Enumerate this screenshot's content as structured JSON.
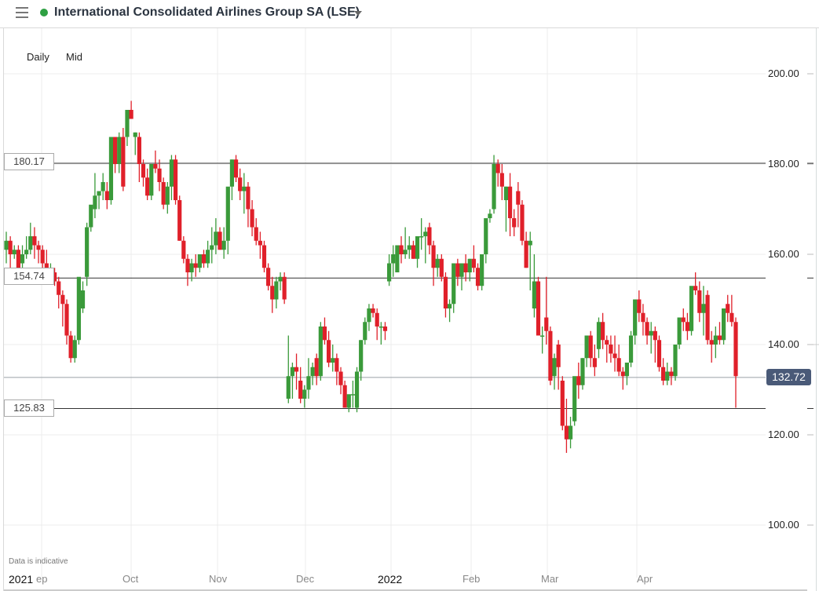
{
  "header": {
    "title": "International Consolidated Airlines Group SA (LSE)",
    "status_color": "#2ea043",
    "menu_icon": "hamburger-icon",
    "dropdown_icon": "caret-down-icon"
  },
  "controls": {
    "interval": "Daily",
    "price_type": "Mid"
  },
  "disclaimer": "Data is indicative",
  "colors": {
    "up": "#3a9a3a",
    "down": "#e0202a",
    "gridline": "#ececec",
    "level_line": "#333333",
    "last_price_bg": "#4a5a78"
  },
  "levels": [
    {
      "value": 180.17,
      "label": "180.17"
    },
    {
      "value": 154.74,
      "label": "154.74"
    },
    {
      "value": 125.83,
      "label": "125.83"
    }
  ],
  "last_price": {
    "value": 132.72,
    "label": "132.72"
  },
  "y_axis": {
    "ticks": [
      "200.00",
      "180.00",
      "160.00",
      "140.00",
      "120.00",
      "100.00"
    ]
  },
  "x_axis": {
    "ticks": [
      {
        "label": "2021",
        "year": true
      },
      {
        "label": "ep",
        "year": false
      },
      {
        "label": "Oct",
        "year": false
      },
      {
        "label": "Nov",
        "year": false
      },
      {
        "label": "Dec",
        "year": false
      },
      {
        "label": "2022",
        "year": true
      },
      {
        "label": "Feb",
        "year": false
      },
      {
        "label": "Mar",
        "year": false
      },
      {
        "label": "Apr",
        "year": false
      }
    ]
  },
  "chart_data": {
    "type": "candlestick",
    "title": "International Consolidated Airlines Group SA (LSE)",
    "subtitle": "Daily Mid",
    "xlabel": "",
    "ylabel": "",
    "ylim": [
      96,
      207
    ],
    "x_range": [
      "2021-09",
      "2022-04"
    ],
    "grid": true,
    "horizontal_levels": [
      180.17,
      154.74,
      125.83
    ],
    "last_price": 132.72,
    "y_ticks": [
      100,
      120,
      140,
      160,
      180,
      200
    ],
    "x_ticks": [
      "2021 Sep",
      "Oct",
      "Nov",
      "Dec",
      "2022",
      "Feb",
      "Mar",
      "Apr"
    ],
    "candles": [
      [
        161,
        165,
        158,
        163
      ],
      [
        163,
        164,
        157,
        160
      ],
      [
        160,
        162,
        159,
        161
      ],
      [
        161,
        162,
        155,
        157
      ],
      [
        158,
        162,
        157,
        160
      ],
      [
        160,
        164,
        159,
        161
      ],
      [
        161,
        167,
        160,
        164
      ],
      [
        164,
        166,
        159,
        162
      ],
      [
        162,
        163,
        158,
        161
      ],
      [
        161,
        162,
        156,
        158
      ],
      [
        158,
        161,
        155,
        155
      ],
      [
        155,
        158,
        154,
        156
      ],
      [
        156,
        157,
        153,
        154
      ],
      [
        154,
        155,
        148,
        151
      ],
      [
        151,
        152,
        144,
        149
      ],
      [
        149,
        150,
        140,
        142
      ],
      [
        142,
        143,
        136,
        137
      ],
      [
        137,
        142,
        136,
        141
      ],
      [
        141,
        153,
        140,
        155
      ],
      [
        148,
        154,
        147,
        152
      ],
      [
        155,
        167,
        153,
        166
      ],
      [
        166,
        170,
        165,
        171
      ],
      [
        170,
        178,
        168,
        173
      ],
      [
        173,
        174,
        170,
        174
      ],
      [
        174,
        178,
        172,
        176
      ],
      [
        174,
        176,
        170,
        172
      ],
      [
        172,
        186,
        171,
        186
      ],
      [
        186,
        186,
        178,
        180
      ],
      [
        180,
        187,
        178,
        186
      ],
      [
        186,
        188,
        174,
        175
      ],
      [
        186,
        191,
        184,
        192
      ],
      [
        192,
        194,
        190,
        190
      ],
      [
        186,
        187,
        182,
        187
      ],
      [
        186,
        187,
        176,
        180
      ],
      [
        180,
        181,
        175,
        177
      ],
      [
        177,
        179,
        172,
        173
      ],
      [
        173,
        180,
        172,
        180
      ],
      [
        180,
        183,
        178,
        179
      ],
      [
        179,
        181,
        174,
        176
      ],
      [
        176,
        177,
        170,
        171
      ],
      [
        171,
        176,
        169,
        175
      ],
      [
        175,
        182,
        172,
        181
      ],
      [
        181,
        182,
        171,
        172
      ],
      [
        172,
        173,
        163,
        163
      ],
      [
        163,
        164,
        158,
        159
      ],
      [
        159,
        160,
        153,
        156
      ],
      [
        156,
        159,
        154,
        158
      ],
      [
        158,
        160,
        155,
        157
      ],
      [
        157,
        160,
        156,
        160
      ],
      [
        160,
        161,
        157,
        158
      ],
      [
        158,
        163,
        157,
        161
      ],
      [
        161,
        166,
        158,
        162
      ],
      [
        162,
        168,
        160,
        165
      ],
      [
        165,
        166,
        161,
        161
      ],
      [
        161,
        166,
        159,
        163
      ],
      [
        163,
        172,
        160,
        175
      ],
      [
        175,
        181,
        172,
        181
      ],
      [
        181,
        182,
        176,
        177
      ],
      [
        177,
        179,
        172,
        174
      ],
      [
        174,
        178,
        169,
        175
      ],
      [
        175,
        176,
        166,
        170
      ],
      [
        170,
        172,
        164,
        166
      ],
      [
        166,
        168,
        162,
        163
      ],
      [
        163,
        165,
        159,
        162
      ],
      [
        162,
        163,
        156,
        157
      ],
      [
        157,
        158,
        152,
        153
      ],
      [
        153,
        155,
        147,
        150
      ],
      [
        150,
        155,
        148,
        154
      ],
      [
        154,
        156,
        152,
        155
      ],
      [
        155,
        156,
        149,
        150
      ],
      [
        128,
        142,
        127,
        133
      ],
      [
        133,
        136,
        128,
        135
      ],
      [
        135,
        138,
        130,
        134
      ],
      [
        132,
        135,
        127,
        128
      ],
      [
        128,
        131,
        126,
        130
      ],
      [
        130,
        137,
        128,
        133
      ],
      [
        133,
        136,
        131,
        135
      ],
      [
        137,
        138,
        131,
        133
      ],
      [
        133,
        145,
        132,
        144
      ],
      [
        144,
        146,
        140,
        141
      ],
      [
        141,
        143,
        135,
        136
      ],
      [
        136,
        140,
        134,
        137
      ],
      [
        137,
        138,
        131,
        134
      ],
      [
        134,
        135,
        129,
        131
      ],
      [
        131,
        132,
        126,
        126
      ],
      [
        126,
        128,
        125,
        129
      ],
      [
        129,
        132,
        126,
        129
      ],
      [
        126,
        135,
        125,
        134
      ],
      [
        134,
        141,
        132,
        141
      ],
      [
        141,
        146,
        140,
        145
      ],
      [
        145,
        149,
        143,
        148
      ],
      [
        148,
        149,
        146,
        147
      ],
      [
        147,
        148,
        141,
        144
      ],
      [
        144,
        145,
        140,
        144
      ],
      [
        144,
        145,
        141,
        143
      ],
      [
        154,
        160,
        153,
        158
      ],
      [
        158,
        162,
        155,
        160
      ],
      [
        156,
        162,
        156,
        162
      ],
      [
        162,
        164,
        158,
        160
      ],
      [
        160,
        166,
        159,
        161
      ],
      [
        161,
        164,
        159,
        162
      ],
      [
        162,
        163,
        159,
        159
      ],
      [
        159,
        164,
        157,
        164
      ],
      [
        164,
        168,
        161,
        164
      ],
      [
        164,
        166,
        158,
        165
      ],
      [
        166,
        167,
        160,
        162
      ],
      [
        162,
        163,
        153,
        157
      ],
      [
        157,
        160,
        155,
        159
      ],
      [
        159,
        160,
        154,
        155
      ],
      [
        155,
        156,
        146,
        148
      ],
      [
        148,
        150,
        145,
        149
      ],
      [
        149,
        158,
        147,
        158
      ],
      [
        158,
        159,
        153,
        155
      ],
      [
        155,
        157,
        152,
        158
      ],
      [
        158,
        160,
        154,
        156
      ],
      [
        156,
        159,
        154,
        159
      ],
      [
        159,
        162,
        156,
        157
      ],
      [
        157,
        158,
        152,
        153
      ],
      [
        153,
        158,
        152,
        160
      ],
      [
        160,
        165,
        158,
        168
      ],
      [
        168,
        170,
        167,
        169
      ],
      [
        170,
        182,
        169,
        180
      ],
      [
        180,
        181,
        175,
        178
      ],
      [
        178,
        180,
        172,
        175
      ],
      [
        172,
        175,
        165,
        175
      ],
      [
        175,
        178,
        164,
        168
      ],
      [
        168,
        170,
        164,
        166
      ],
      [
        174,
        176,
        166,
        171
      ],
      [
        171,
        172,
        162,
        163
      ],
      [
        163,
        165,
        157,
        157
      ],
      [
        162,
        165,
        152,
        163
      ],
      [
        148,
        160,
        146,
        154
      ],
      [
        154,
        155,
        143,
        142
      ],
      [
        142,
        144,
        138,
        142
      ],
      [
        146,
        155,
        140,
        143
      ],
      [
        143,
        144,
        131,
        132
      ],
      [
        133,
        138,
        130,
        137
      ],
      [
        140,
        141,
        130,
        135
      ],
      [
        132,
        133,
        121,
        122
      ],
      [
        122,
        128,
        116,
        119
      ],
      [
        119,
        124,
        117,
        122
      ],
      [
        123,
        130,
        122,
        133
      ],
      [
        133,
        136,
        128,
        131
      ],
      [
        131,
        137,
        130,
        137
      ],
      [
        137,
        142,
        135,
        142
      ],
      [
        142,
        143,
        135,
        137
      ],
      [
        137,
        140,
        133,
        135
      ],
      [
        139,
        146,
        137,
        145
      ],
      [
        145,
        147,
        139,
        141
      ],
      [
        141,
        142,
        136,
        140
      ],
      [
        140,
        142,
        136,
        138
      ],
      [
        138,
        142,
        134,
        137
      ],
      [
        137,
        140,
        133,
        134
      ],
      [
        134,
        135,
        130,
        133
      ],
      [
        133,
        136,
        131,
        136
      ],
      [
        136,
        143,
        135,
        142
      ],
      [
        142,
        149,
        140,
        150
      ],
      [
        150,
        152,
        145,
        147
      ],
      [
        147,
        149,
        142,
        145
      ],
      [
        145,
        146,
        140,
        142
      ],
      [
        142,
        145,
        138,
        143
      ],
      [
        143,
        144,
        136,
        141
      ],
      [
        141,
        142,
        134,
        135
      ],
      [
        135,
        137,
        131,
        132
      ],
      [
        132,
        136,
        131,
        134
      ],
      [
        134,
        135,
        131,
        133
      ],
      [
        133,
        140,
        132,
        140
      ],
      [
        140,
        145,
        139,
        146
      ],
      [
        146,
        148,
        143,
        145
      ],
      [
        145,
        147,
        141,
        143
      ],
      [
        143,
        152,
        142,
        153
      ],
      [
        153,
        156,
        151,
        152
      ],
      [
        152,
        154,
        145,
        147
      ],
      [
        147,
        153,
        142,
        149
      ],
      [
        151,
        152,
        140,
        141
      ],
      [
        141,
        143,
        136,
        140
      ],
      [
        140,
        144,
        137,
        142
      ],
      [
        142,
        145,
        140,
        141
      ],
      [
        141,
        148,
        140,
        148
      ],
      [
        149,
        151,
        145,
        147
      ],
      [
        147,
        151,
        144,
        145
      ],
      [
        145,
        146,
        126,
        133
      ]
    ]
  }
}
